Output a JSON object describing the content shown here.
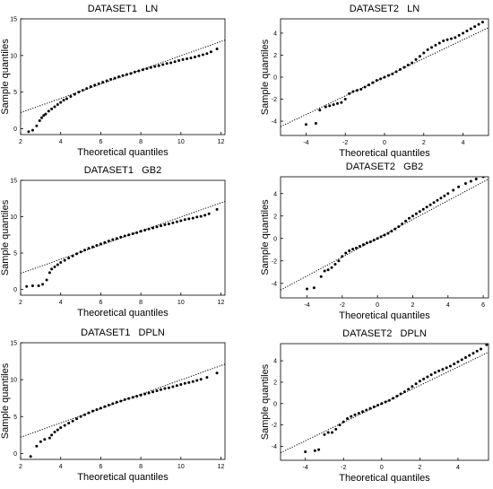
{
  "figure": {
    "xlabel": "Theoretical quantiles",
    "ylabel": "Sample quantiles"
  },
  "chart_data": [
    {
      "type": "scatter",
      "title": "DATASET1   LN",
      "xlabel": "Theoretical quantiles",
      "ylabel": "Sample quantiles",
      "xlim": [
        2,
        12.2
      ],
      "ylim": [
        -0.8,
        15
      ],
      "xticks": [
        2,
        4,
        6,
        8,
        10,
        12
      ],
      "yticks": [
        0,
        5,
        10,
        15
      ],
      "reference_line": [
        [
          2,
          2.2
        ],
        [
          12.2,
          12.1
        ]
      ],
      "points": [
        [
          2.4,
          -0.4
        ],
        [
          2.6,
          -0.2
        ],
        [
          2.8,
          0.4
        ],
        [
          2.95,
          1.1
        ],
        [
          3.05,
          1.5
        ],
        [
          3.15,
          1.8
        ],
        [
          3.25,
          2.0
        ],
        [
          3.4,
          2.4
        ],
        [
          3.55,
          2.7
        ],
        [
          3.7,
          3.0
        ],
        [
          3.85,
          3.3
        ],
        [
          4.0,
          3.6
        ],
        [
          4.15,
          3.9
        ],
        [
          4.3,
          4.1
        ],
        [
          4.5,
          4.4
        ],
        [
          4.7,
          4.7
        ],
        [
          4.9,
          5.0
        ],
        [
          5.1,
          5.25
        ],
        [
          5.3,
          5.5
        ],
        [
          5.5,
          5.75
        ],
        [
          5.7,
          5.95
        ],
        [
          5.9,
          6.15
        ],
        [
          6.1,
          6.35
        ],
        [
          6.3,
          6.55
        ],
        [
          6.5,
          6.75
        ],
        [
          6.7,
          6.9
        ],
        [
          6.9,
          7.1
        ],
        [
          7.1,
          7.25
        ],
        [
          7.3,
          7.4
        ],
        [
          7.5,
          7.55
        ],
        [
          7.7,
          7.75
        ],
        [
          7.9,
          7.9
        ],
        [
          8.1,
          8.05
        ],
        [
          8.3,
          8.2
        ],
        [
          8.5,
          8.35
        ],
        [
          8.7,
          8.5
        ],
        [
          8.9,
          8.6
        ],
        [
          9.1,
          8.75
        ],
        [
          9.3,
          8.9
        ],
        [
          9.5,
          9.0
        ],
        [
          9.7,
          9.15
        ],
        [
          9.9,
          9.3
        ],
        [
          10.1,
          9.45
        ],
        [
          10.3,
          9.55
        ],
        [
          10.5,
          9.65
        ],
        [
          10.7,
          9.8
        ],
        [
          10.9,
          9.95
        ],
        [
          11.1,
          10.1
        ],
        [
          11.3,
          10.25
        ],
        [
          11.5,
          10.5
        ],
        [
          11.8,
          10.9
        ]
      ]
    },
    {
      "type": "scatter",
      "title": "DATASET2   LN",
      "xlabel": "Theoretical quantiles",
      "ylabel": "Sample quantiles",
      "xlim": [
        -5.3,
        5.3
      ],
      "ylim": [
        -5.3,
        5.3
      ],
      "xticks": [
        -4,
        -2,
        0,
        2,
        4
      ],
      "yticks": [
        -4,
        -2,
        0,
        2,
        4
      ],
      "reference_line": [
        [
          -5.3,
          -4.5
        ],
        [
          5.3,
          4.5
        ]
      ],
      "points": [
        [
          -4.0,
          -4.3
        ],
        [
          -3.5,
          -4.2
        ],
        [
          -3.3,
          -3.0
        ],
        [
          -3.0,
          -2.7
        ],
        [
          -2.8,
          -2.6
        ],
        [
          -2.6,
          -2.5
        ],
        [
          -2.4,
          -2.4
        ],
        [
          -2.2,
          -2.3
        ],
        [
          -2.0,
          -2.0
        ],
        [
          -1.8,
          -1.5
        ],
        [
          -1.6,
          -1.3
        ],
        [
          -1.4,
          -1.2
        ],
        [
          -1.2,
          -1.1
        ],
        [
          -1.0,
          -0.9
        ],
        [
          -0.8,
          -0.7
        ],
        [
          -0.6,
          -0.5
        ],
        [
          -0.4,
          -0.3
        ],
        [
          -0.2,
          -0.15
        ],
        [
          0.0,
          0.0
        ],
        [
          0.2,
          0.15
        ],
        [
          0.4,
          0.3
        ],
        [
          0.6,
          0.5
        ],
        [
          0.8,
          0.7
        ],
        [
          1.0,
          0.9
        ],
        [
          1.2,
          1.1
        ],
        [
          1.4,
          1.3
        ],
        [
          1.6,
          1.6
        ],
        [
          1.8,
          1.9
        ],
        [
          2.0,
          2.2
        ],
        [
          2.2,
          2.5
        ],
        [
          2.4,
          2.7
        ],
        [
          2.6,
          2.9
        ],
        [
          2.8,
          3.1
        ],
        [
          3.0,
          3.3
        ],
        [
          3.2,
          3.4
        ],
        [
          3.4,
          3.5
        ],
        [
          3.6,
          3.6
        ],
        [
          3.8,
          3.8
        ],
        [
          4.0,
          4.0
        ],
        [
          4.2,
          4.2
        ],
        [
          4.4,
          4.4
        ],
        [
          4.6,
          4.6
        ],
        [
          4.8,
          4.8
        ],
        [
          5.0,
          5.0
        ]
      ]
    },
    {
      "type": "scatter",
      "title": "DATASET1   GB2",
      "xlabel": "Theoretical quantiles",
      "ylabel": "Sample quantiles",
      "xlim": [
        2,
        12.2
      ],
      "ylim": [
        -0.8,
        15
      ],
      "xticks": [
        2,
        4,
        6,
        8,
        10,
        12
      ],
      "yticks": [
        0,
        5,
        10,
        15
      ],
      "reference_line": [
        [
          2,
          2.2
        ],
        [
          12.2,
          12.1
        ]
      ],
      "points": [
        [
          2.3,
          0.4
        ],
        [
          2.6,
          0.5
        ],
        [
          2.9,
          0.5
        ],
        [
          3.1,
          0.7
        ],
        [
          3.3,
          1.3
        ],
        [
          3.45,
          2.3
        ],
        [
          3.55,
          2.8
        ],
        [
          3.7,
          3.1
        ],
        [
          3.85,
          3.4
        ],
        [
          4.0,
          3.7
        ],
        [
          4.2,
          4.0
        ],
        [
          4.4,
          4.3
        ],
        [
          4.6,
          4.6
        ],
        [
          4.8,
          4.9
        ],
        [
          5.0,
          5.15
        ],
        [
          5.2,
          5.4
        ],
        [
          5.4,
          5.65
        ],
        [
          5.6,
          5.85
        ],
        [
          5.8,
          6.05
        ],
        [
          6.0,
          6.25
        ],
        [
          6.2,
          6.45
        ],
        [
          6.4,
          6.65
        ],
        [
          6.6,
          6.85
        ],
        [
          6.8,
          7.0
        ],
        [
          7.0,
          7.2
        ],
        [
          7.2,
          7.35
        ],
        [
          7.4,
          7.5
        ],
        [
          7.6,
          7.65
        ],
        [
          7.8,
          7.8
        ],
        [
          8.0,
          8.0
        ],
        [
          8.2,
          8.15
        ],
        [
          8.4,
          8.3
        ],
        [
          8.6,
          8.45
        ],
        [
          8.8,
          8.6
        ],
        [
          9.0,
          8.75
        ],
        [
          9.2,
          8.9
        ],
        [
          9.4,
          9.0
        ],
        [
          9.6,
          9.15
        ],
        [
          9.8,
          9.3
        ],
        [
          10.0,
          9.45
        ],
        [
          10.2,
          9.6
        ],
        [
          10.4,
          9.7
        ],
        [
          10.6,
          9.8
        ],
        [
          10.8,
          9.95
        ],
        [
          11.0,
          10.05
        ],
        [
          11.2,
          10.2
        ],
        [
          11.4,
          10.4
        ],
        [
          11.8,
          11.0
        ]
      ]
    },
    {
      "type": "scatter",
      "title": "DATASET2   GB2",
      "xlabel": "Theoretical quantiles",
      "ylabel": "Sample quantiles",
      "xlim": [
        -5.5,
        6.3
      ],
      "ylim": [
        -5.3,
        5.5
      ],
      "xticks": [
        -4,
        -2,
        0,
        2,
        4,
        6
      ],
      "yticks": [
        -4,
        -2,
        0,
        2,
        4
      ],
      "reference_line": [
        [
          -5.5,
          -4.6
        ],
        [
          6.3,
          5.3
        ]
      ],
      "points": [
        [
          -4.0,
          -4.5
        ],
        [
          -3.6,
          -4.4
        ],
        [
          -3.2,
          -3.4
        ],
        [
          -3.0,
          -2.9
        ],
        [
          -2.8,
          -2.8
        ],
        [
          -2.6,
          -2.6
        ],
        [
          -2.4,
          -2.3
        ],
        [
          -2.2,
          -2.0
        ],
        [
          -2.0,
          -1.6
        ],
        [
          -1.8,
          -1.3
        ],
        [
          -1.6,
          -1.1
        ],
        [
          -1.4,
          -0.95
        ],
        [
          -1.2,
          -0.85
        ],
        [
          -1.0,
          -0.7
        ],
        [
          -0.8,
          -0.55
        ],
        [
          -0.6,
          -0.4
        ],
        [
          -0.4,
          -0.3
        ],
        [
          -0.2,
          -0.15
        ],
        [
          0.0,
          0.0
        ],
        [
          0.2,
          0.15
        ],
        [
          0.4,
          0.3
        ],
        [
          0.6,
          0.45
        ],
        [
          0.8,
          0.65
        ],
        [
          1.0,
          0.85
        ],
        [
          1.2,
          1.05
        ],
        [
          1.4,
          1.3
        ],
        [
          1.6,
          1.55
        ],
        [
          1.8,
          1.8
        ],
        [
          2.0,
          2.0
        ],
        [
          2.2,
          2.2
        ],
        [
          2.4,
          2.4
        ],
        [
          2.6,
          2.6
        ],
        [
          2.8,
          2.8
        ],
        [
          3.0,
          3.0
        ],
        [
          3.2,
          3.2
        ],
        [
          3.4,
          3.4
        ],
        [
          3.6,
          3.6
        ],
        [
          3.8,
          3.8
        ],
        [
          4.0,
          4.0
        ],
        [
          4.3,
          4.3
        ],
        [
          4.6,
          4.6
        ],
        [
          5.0,
          4.9
        ],
        [
          5.3,
          5.1
        ],
        [
          5.6,
          5.3
        ],
        [
          6.0,
          5.5
        ]
      ]
    },
    {
      "type": "scatter",
      "title": "DATASET1   DPLN",
      "xlabel": "Theoretical quantiles",
      "ylabel": "Sample quantiles",
      "xlim": [
        2,
        12.2
      ],
      "ylim": [
        -0.8,
        15
      ],
      "xticks": [
        2,
        4,
        6,
        8,
        10,
        12
      ],
      "yticks": [
        0,
        5,
        10,
        15
      ],
      "reference_line": [
        [
          2,
          2.2
        ],
        [
          12.2,
          12.1
        ]
      ],
      "points": [
        [
          2.5,
          -0.4
        ],
        [
          2.8,
          1.0
        ],
        [
          3.0,
          1.6
        ],
        [
          3.2,
          1.9
        ],
        [
          3.45,
          2.1
        ],
        [
          3.55,
          2.5
        ],
        [
          3.7,
          2.9
        ],
        [
          3.85,
          3.2
        ],
        [
          4.0,
          3.5
        ],
        [
          4.2,
          3.8
        ],
        [
          4.4,
          4.1
        ],
        [
          4.6,
          4.4
        ],
        [
          4.8,
          4.7
        ],
        [
          5.0,
          5.0
        ],
        [
          5.2,
          5.25
        ],
        [
          5.4,
          5.5
        ],
        [
          5.6,
          5.75
        ],
        [
          5.8,
          5.95
        ],
        [
          6.0,
          6.15
        ],
        [
          6.2,
          6.35
        ],
        [
          6.4,
          6.55
        ],
        [
          6.6,
          6.75
        ],
        [
          6.8,
          6.95
        ],
        [
          7.0,
          7.1
        ],
        [
          7.2,
          7.3
        ],
        [
          7.4,
          7.45
        ],
        [
          7.6,
          7.6
        ],
        [
          7.8,
          7.75
        ],
        [
          8.0,
          7.9
        ],
        [
          8.2,
          8.05
        ],
        [
          8.4,
          8.2
        ],
        [
          8.6,
          8.35
        ],
        [
          8.8,
          8.5
        ],
        [
          9.0,
          8.65
        ],
        [
          9.2,
          8.8
        ],
        [
          9.4,
          8.9
        ],
        [
          9.6,
          9.05
        ],
        [
          9.8,
          9.2
        ],
        [
          10.0,
          9.35
        ],
        [
          10.2,
          9.5
        ],
        [
          10.4,
          9.6
        ],
        [
          10.6,
          9.75
        ],
        [
          10.8,
          9.9
        ],
        [
          11.0,
          10.05
        ],
        [
          11.3,
          10.3
        ],
        [
          11.8,
          10.9
        ]
      ]
    },
    {
      "type": "scatter",
      "title": "DATASET2   DPLN",
      "xlabel": "Theoretical quantiles",
      "ylabel": "Sample quantiles",
      "xlim": [
        -5.3,
        5.6
      ],
      "ylim": [
        -5.3,
        5.6
      ],
      "xticks": [
        -4,
        -2,
        0,
        2,
        4
      ],
      "yticks": [
        -4,
        -2,
        0,
        2,
        4
      ],
      "reference_line": [
        [
          -5.3,
          -4.6
        ],
        [
          5.6,
          4.8
        ]
      ],
      "points": [
        [
          -4.0,
          -4.5
        ],
        [
          -3.5,
          -4.4
        ],
        [
          -3.3,
          -4.3
        ],
        [
          -3.0,
          -2.9
        ],
        [
          -2.8,
          -2.7
        ],
        [
          -2.6,
          -2.7
        ],
        [
          -2.4,
          -2.4
        ],
        [
          -2.2,
          -2.0
        ],
        [
          -2.0,
          -1.7
        ],
        [
          -1.8,
          -1.4
        ],
        [
          -1.6,
          -1.2
        ],
        [
          -1.4,
          -1.05
        ],
        [
          -1.2,
          -0.9
        ],
        [
          -1.0,
          -0.75
        ],
        [
          -0.8,
          -0.6
        ],
        [
          -0.6,
          -0.45
        ],
        [
          -0.4,
          -0.3
        ],
        [
          -0.2,
          -0.15
        ],
        [
          0.0,
          0.0
        ],
        [
          0.2,
          0.15
        ],
        [
          0.4,
          0.3
        ],
        [
          0.6,
          0.5
        ],
        [
          0.8,
          0.7
        ],
        [
          1.0,
          0.9
        ],
        [
          1.2,
          1.1
        ],
        [
          1.4,
          1.35
        ],
        [
          1.6,
          1.6
        ],
        [
          1.8,
          1.85
        ],
        [
          2.0,
          2.1
        ],
        [
          2.2,
          2.3
        ],
        [
          2.4,
          2.5
        ],
        [
          2.6,
          2.7
        ],
        [
          2.8,
          2.9
        ],
        [
          3.0,
          3.05
        ],
        [
          3.2,
          3.2
        ],
        [
          3.4,
          3.35
        ],
        [
          3.6,
          3.5
        ],
        [
          3.8,
          3.7
        ],
        [
          4.0,
          3.9
        ],
        [
          4.2,
          4.1
        ],
        [
          4.4,
          4.3
        ],
        [
          4.6,
          4.5
        ],
        [
          4.8,
          4.7
        ],
        [
          5.0,
          4.9
        ],
        [
          5.2,
          5.1
        ],
        [
          5.5,
          5.5
        ]
      ]
    }
  ]
}
